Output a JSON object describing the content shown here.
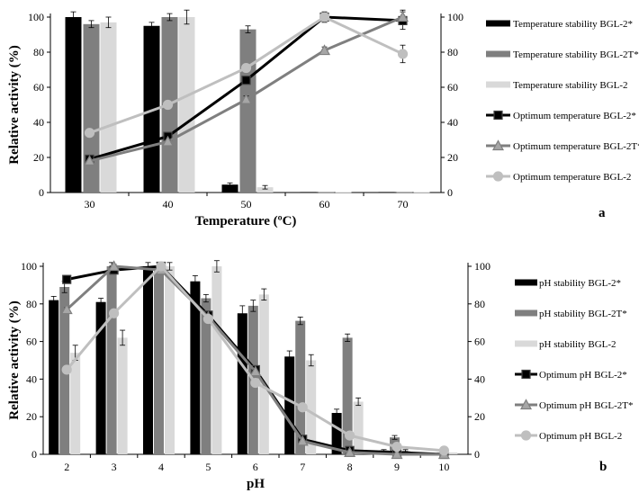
{
  "chart_data": [
    {
      "type": "bar",
      "panel_label": "a",
      "xlabel": "Temperature (ºC)",
      "ylabel": "Relative activity (%)",
      "categories": [
        "30",
        "40",
        "50",
        "60",
        "70"
      ],
      "ylim": [
        0,
        100
      ],
      "y_ticks": [
        "0",
        "20",
        "40",
        "60",
        "80",
        "100"
      ],
      "y2_ticks": [
        "0",
        "20",
        "40",
        "60",
        "80",
        "100"
      ],
      "bar_series": [
        {
          "name": "Temperature stability BGL-2*",
          "color": "#000000",
          "values": [
            100,
            95,
            4.5,
            0.3,
            0.3
          ],
          "errors": [
            3,
            2,
            1,
            0,
            0
          ]
        },
        {
          "name": "Temperature stability BGL-2T*",
          "color": "#7f7f7f",
          "values": [
            96,
            100,
            93,
            0.3,
            0.3
          ],
          "errors": [
            2,
            2,
            2,
            0,
            0
          ]
        },
        {
          "name": "Temperature stability BGL-2",
          "color": "#d9d9d9",
          "values": [
            97,
            100,
            3,
            0.3,
            0.3
          ],
          "errors": [
            3,
            4,
            1,
            0,
            0
          ]
        }
      ],
      "line_series": [
        {
          "name": "Optimum temperature BGL-2*",
          "color": "#000000",
          "marker": "square",
          "values": [
            19,
            32,
            64,
            100,
            98
          ],
          "errors": [
            1,
            2,
            2,
            3,
            5
          ]
        },
        {
          "name": "Optimum temperature BGL-2T*",
          "color": "#7f7f7f",
          "marker": "triangle",
          "values": [
            18,
            29,
            53,
            81,
            100
          ],
          "errors": [
            1,
            1,
            2,
            2,
            4
          ]
        },
        {
          "name": "Optimum temperature BGL-2",
          "color": "#bfbfbf",
          "marker": "circle",
          "values": [
            34,
            50,
            71,
            100,
            79
          ],
          "errors": [
            1,
            1,
            2,
            2,
            5
          ]
        }
      ]
    },
    {
      "type": "bar",
      "panel_label": "b",
      "xlabel": "pH",
      "ylabel": "Relative activity (%)",
      "categories": [
        "2",
        "3",
        "4",
        "5",
        "6",
        "7",
        "8",
        "9",
        "10"
      ],
      "ylim": [
        0,
        100
      ],
      "y_ticks": [
        "0",
        "20",
        "40",
        "60",
        "80",
        "100"
      ],
      "y2_ticks": [
        "0",
        "20",
        "40",
        "60",
        "80",
        "100"
      ],
      "bar_series": [
        {
          "name": "pH stability BGL-2*",
          "color": "#000000",
          "values": [
            82,
            81,
            100,
            92,
            75,
            52,
            22,
            2,
            0.5
          ],
          "errors": [
            2,
            2,
            2,
            3,
            4,
            3,
            2,
            0.5,
            0
          ]
        },
        {
          "name": "pH stability BGL-2T*",
          "color": "#7f7f7f",
          "values": [
            89,
            100,
            100,
            83,
            79,
            71,
            62,
            9,
            1
          ],
          "errors": [
            3,
            2,
            2,
            2,
            3,
            2,
            2,
            1,
            0
          ]
        },
        {
          "name": "pH stability BGL-2",
          "color": "#d9d9d9",
          "values": [
            54,
            62,
            100,
            100,
            85,
            50,
            28,
            2,
            1
          ],
          "errors": [
            4,
            4,
            2,
            3,
            3,
            3,
            2,
            0.5,
            0
          ]
        }
      ],
      "line_series": [
        {
          "name": "Optimum pH BGL-2*",
          "color": "#000000",
          "marker": "square",
          "values": [
            93,
            98,
            100,
            74,
            45,
            8,
            2,
            1,
            0
          ],
          "errors": [
            1,
            1,
            1,
            1,
            1,
            1,
            0.5,
            0,
            0
          ]
        },
        {
          "name": "Optimum pH BGL-2T*",
          "color": "#7f7f7f",
          "marker": "triangle",
          "values": [
            77,
            100,
            98,
            73,
            44,
            7,
            1,
            0,
            0
          ],
          "errors": [
            1,
            1,
            1,
            1,
            1,
            1,
            0.5,
            0,
            0
          ]
        },
        {
          "name": "Optimum pH BGL-2",
          "color": "#bfbfbf",
          "marker": "circle",
          "values": [
            45,
            75,
            100,
            72,
            38,
            25,
            10,
            4,
            2
          ],
          "errors": [
            1,
            1,
            1,
            1,
            1,
            1,
            1,
            0.5,
            0.5
          ]
        }
      ]
    }
  ]
}
